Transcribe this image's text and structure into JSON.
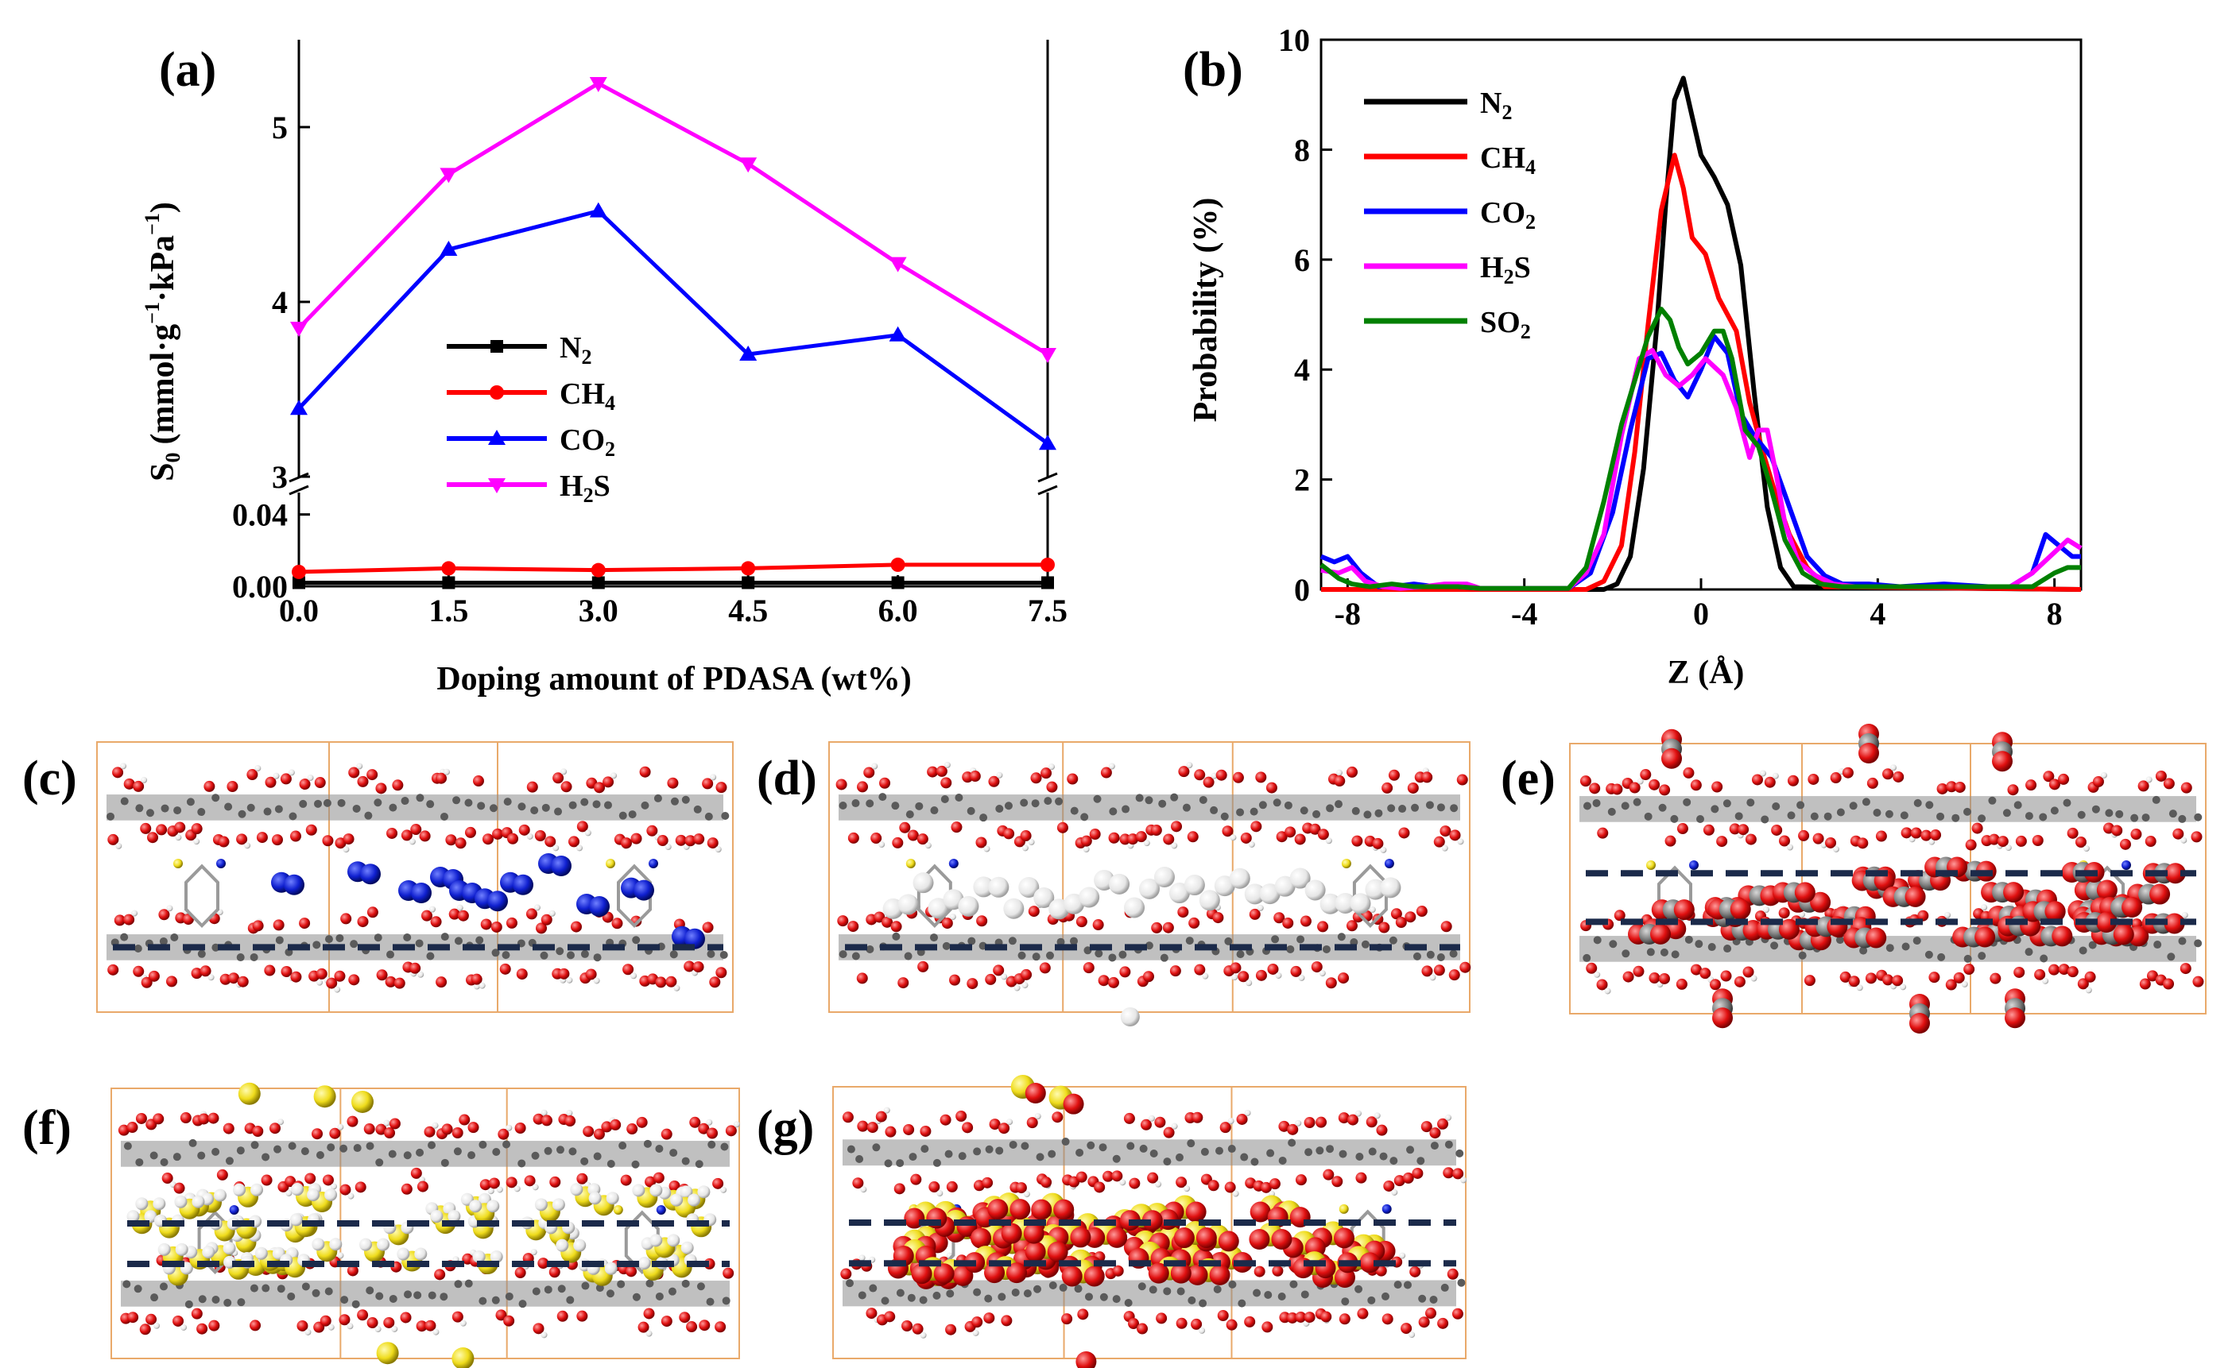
{
  "colors": {
    "N2": "#000000",
    "CH4": "#ff0000",
    "CO2": "#0000ff",
    "H2S": "#ff00ff",
    "SO2": "#008000",
    "box": "#e9a96a",
    "dash": "#1b2a4a",
    "oxygen": "#e01010",
    "carbon": "#808080",
    "hydrogen": "#eeeeee",
    "sulfur": "#f1df20",
    "nitrogen": "#1020d0"
  },
  "chart_data": [
    {
      "id": "a",
      "panel_label": "(a)",
      "type": "line",
      "xlabel": "Doping amount of PDASA (wt%)",
      "ylabel_main": "S",
      "ylabel_sub": "0",
      "ylabel_units": "(mmol·g",
      "ylabel_exp1": "−1",
      "ylabel_mid": "·kPa",
      "ylabel_exp2": "−1",
      "ylabel_close": ")",
      "x": [
        0.0,
        1.5,
        3.0,
        4.5,
        6.0,
        7.5
      ],
      "x_ticks": [
        "0.0",
        "1.5",
        "3.0",
        "4.5",
        "6.0",
        "7.5"
      ],
      "y_axis_broken": true,
      "ylim_lower": [
        0,
        0.05
      ],
      "y_ticks_lower": [
        "0.00",
        "0.04"
      ],
      "ylim_upper": [
        3,
        5.5
      ],
      "y_ticks_upper": [
        "3",
        "4",
        "5"
      ],
      "legend": [
        {
          "base": "N",
          "sub": "2"
        },
        {
          "base": "CH",
          "sub": "4"
        },
        {
          "base": "CO",
          "sub": "2"
        },
        {
          "base": "H",
          "sub": "2",
          "rest": "S"
        }
      ],
      "series": [
        {
          "name": "N2",
          "values": [
            0.002,
            0.002,
            0.002,
            0.002,
            0.002,
            0.002
          ]
        },
        {
          "name": "CH4",
          "values": [
            0.008,
            0.01,
            0.009,
            0.01,
            0.012,
            0.012
          ]
        },
        {
          "name": "CO2",
          "values": [
            3.39,
            4.3,
            4.52,
            3.7,
            3.81,
            3.19
          ]
        },
        {
          "name": "H2S",
          "values": [
            3.85,
            4.73,
            5.25,
            4.79,
            4.22,
            3.7
          ]
        }
      ]
    },
    {
      "id": "b",
      "panel_label": "(b)",
      "type": "line",
      "xlabel": "Z (Å)",
      "ylabel": "Probability (%)",
      "xlim": [
        -8.6,
        8.6
      ],
      "ylim": [
        0,
        10
      ],
      "x_ticks": [
        "-8",
        "-4",
        "0",
        "4",
        "8"
      ],
      "y_ticks": [
        "0",
        "2",
        "4",
        "6",
        "8",
        "10"
      ],
      "legend": [
        {
          "base": "N",
          "sub": "2"
        },
        {
          "base": "CH",
          "sub": "4"
        },
        {
          "base": "CO",
          "sub": "2"
        },
        {
          "base": "H",
          "sub": "2",
          "rest": "S"
        },
        {
          "base": "SO",
          "sub": "2"
        }
      ],
      "series": [
        {
          "name": "N2",
          "x": [
            -8.6,
            -2.2,
            -1.9,
            -1.6,
            -1.3,
            -1.0,
            -0.8,
            -0.6,
            -0.4,
            -0.2,
            0.0,
            0.3,
            0.6,
            0.9,
            1.2,
            1.5,
            1.8,
            2.1,
            8.6
          ],
          "y": [
            0,
            0,
            0.1,
            0.6,
            2.2,
            4.8,
            7.0,
            8.9,
            9.3,
            8.6,
            7.9,
            7.5,
            7.0,
            5.9,
            3.6,
            1.5,
            0.4,
            0.05,
            0
          ]
        },
        {
          "name": "CH4",
          "x": [
            -8.6,
            -2.6,
            -2.2,
            -1.8,
            -1.5,
            -1.2,
            -0.9,
            -0.6,
            -0.4,
            -0.2,
            0.1,
            0.4,
            0.8,
            1.1,
            1.4,
            1.7,
            2.0,
            2.4,
            2.8,
            8.6
          ],
          "y": [
            0,
            0,
            0.15,
            0.8,
            2.5,
            4.8,
            6.9,
            7.9,
            7.3,
            6.4,
            6.1,
            5.3,
            4.7,
            3.4,
            2.5,
            1.7,
            1.0,
            0.4,
            0.05,
            0
          ]
        },
        {
          "name": "CO2",
          "x": [
            -8.6,
            -8.3,
            -8.0,
            -7.7,
            -7.3,
            -7.0,
            -6.5,
            -6.0,
            -5.5,
            -5.0,
            -4.5,
            -4.0,
            -3.5,
            -3.0,
            -2.5,
            -2.0,
            -1.6,
            -1.2,
            -0.9,
            -0.6,
            -0.3,
            0.0,
            0.3,
            0.6,
            0.9,
            1.2,
            1.6,
            2.0,
            2.4,
            2.8,
            3.2,
            3.8,
            4.5,
            5.5,
            6.5,
            7.0,
            7.5,
            7.8,
            8.1,
            8.4,
            8.6
          ],
          "y": [
            0.6,
            0.5,
            0.6,
            0.3,
            0.05,
            0.05,
            0.1,
            0.05,
            0.05,
            0.02,
            0.02,
            0.02,
            0.02,
            0.02,
            0.3,
            1.4,
            2.9,
            4.2,
            4.3,
            3.8,
            3.5,
            4.0,
            4.6,
            4.3,
            3.2,
            2.8,
            2.4,
            1.5,
            0.6,
            0.25,
            0.1,
            0.1,
            0.05,
            0.1,
            0.05,
            0.05,
            0.3,
            1.0,
            0.8,
            0.6,
            0.6
          ]
        },
        {
          "name": "H2S",
          "x": [
            -8.6,
            -8.2,
            -7.9,
            -7.6,
            -7.2,
            -6.8,
            -6.3,
            -5.8,
            -5.3,
            -5.0,
            -4.5,
            -4.0,
            -3.5,
            -3.0,
            -2.6,
            -2.2,
            -1.8,
            -1.4,
            -1.1,
            -0.8,
            -0.5,
            -0.2,
            0.1,
            0.5,
            0.8,
            1.1,
            1.3,
            1.5,
            1.7,
            1.9,
            2.2,
            2.6,
            3.0,
            3.5,
            4.0,
            5.0,
            6.0,
            7.0,
            7.5,
            7.9,
            8.3,
            8.6
          ],
          "y": [
            0.35,
            0.3,
            0.4,
            0.15,
            0.05,
            0.02,
            0.05,
            0.1,
            0.1,
            0.02,
            0.02,
            0.02,
            0.02,
            0.02,
            0.3,
            1.0,
            2.8,
            4.2,
            4.35,
            3.9,
            3.7,
            3.9,
            4.2,
            3.9,
            3.3,
            2.4,
            2.9,
            2.9,
            2.1,
            1.2,
            0.5,
            0.25,
            0.1,
            0.05,
            0.05,
            0.05,
            0.05,
            0.05,
            0.3,
            0.6,
            0.9,
            0.75
          ]
        },
        {
          "name": "SO2",
          "x": [
            -8.6,
            -8.2,
            -7.9,
            -7.5,
            -7.0,
            -6.5,
            -6.0,
            -5.5,
            -5.0,
            -4.5,
            -4.0,
            -3.5,
            -3.0,
            -2.6,
            -2.2,
            -1.8,
            -1.5,
            -1.2,
            -0.9,
            -0.7,
            -0.5,
            -0.3,
            0.0,
            0.3,
            0.5,
            0.7,
            1.0,
            1.3,
            1.6,
            1.9,
            2.3,
            2.7,
            3.2,
            3.8,
            4.5,
            5.5,
            6.5,
            7.5,
            8.0,
            8.3,
            8.6
          ],
          "y": [
            0.45,
            0.2,
            0.1,
            0.05,
            0.1,
            0.05,
            0.05,
            0.05,
            0.02,
            0.02,
            0.02,
            0.02,
            0.02,
            0.4,
            1.6,
            3.0,
            3.8,
            4.6,
            5.1,
            4.9,
            4.4,
            4.1,
            4.3,
            4.7,
            4.7,
            4.2,
            2.9,
            2.6,
            1.8,
            0.9,
            0.3,
            0.1,
            0.05,
            0.05,
            0.05,
            0.05,
            0.05,
            0.05,
            0.3,
            0.4,
            0.4
          ]
        }
      ]
    }
  ],
  "snapshots": [
    {
      "label": "(c)",
      "adsorbate": "N2"
    },
    {
      "label": "(d)",
      "adsorbate": "CH4"
    },
    {
      "label": "(e)",
      "adsorbate": "CO2"
    },
    {
      "label": "(f)",
      "adsorbate": "H2S"
    },
    {
      "label": "(g)",
      "adsorbate": "SO2"
    }
  ]
}
